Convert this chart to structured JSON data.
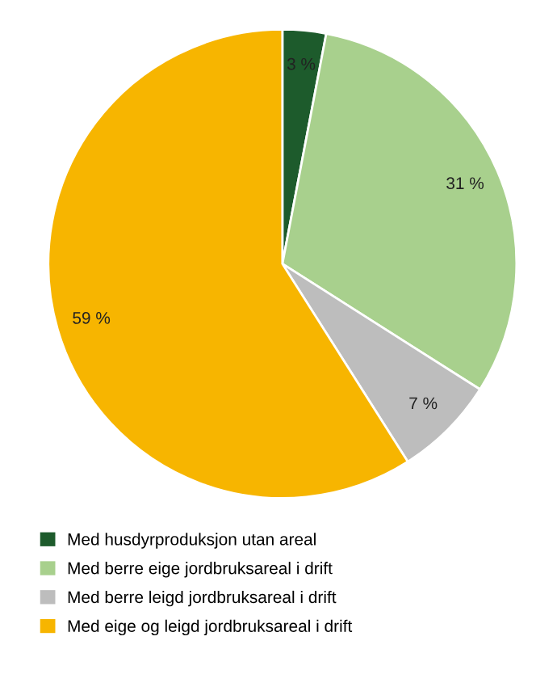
{
  "chart_data": {
    "type": "pie",
    "categories": [
      "Med husdyrproduksjon utan areal",
      "Med berre eige jordbruksareal i drift",
      "Med berre leigd jordbruksareal i drift",
      "Med eige og leigd jordbruksareal i drift"
    ],
    "values": [
      3,
      31,
      7,
      59
    ],
    "colors": [
      "#1d5b2c",
      "#a8d08d",
      "#bdbdbd",
      "#f7b500"
    ],
    "value_labels": [
      "3 %",
      "31 %",
      "7 %",
      "59 %"
    ],
    "legend": "bottom"
  }
}
